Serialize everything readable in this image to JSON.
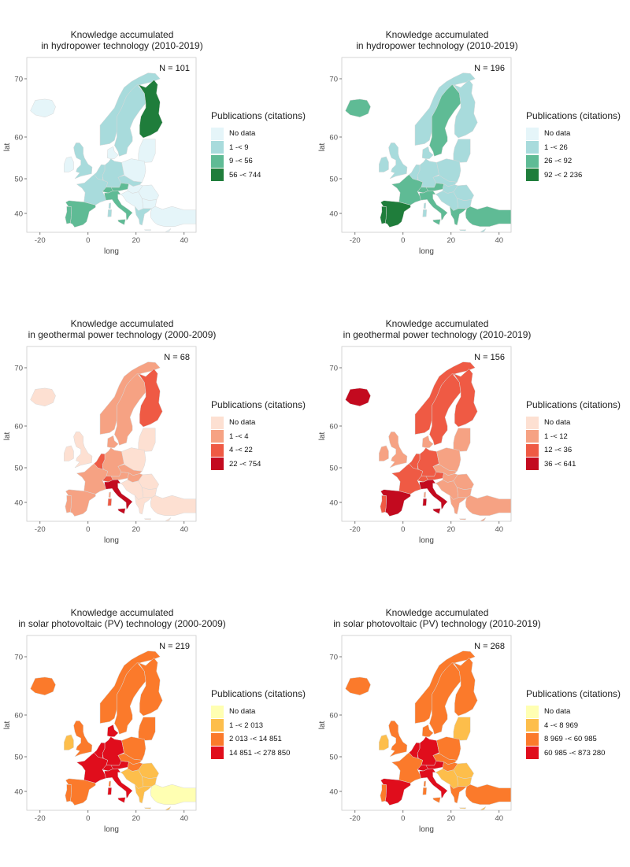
{
  "axis": {
    "xlabel": "long",
    "ylabel": "lat",
    "xticks": [
      "-20",
      "0",
      "20",
      "40"
    ],
    "yticks": [
      "40",
      "50",
      "60",
      "70"
    ]
  },
  "n_prefix": "N = ",
  "legend_title": "Publications (citations)",
  "panels": [
    {
      "title_line1": "Knowledge accumulated",
      "title_line2": "in hydropower technology (2010-2019)",
      "n": "101",
      "legend": [
        "No data",
        "1 -< 9",
        "9 -< 56",
        "56 -< 744"
      ],
      "colors": [
        "#e5f5f9",
        "#a8dbdc",
        "#5fbb95",
        "#1f7d3b"
      ]
    },
    {
      "title_line1": "Knowledge accumulated",
      "title_line2": "in hydropower technology (2010-2019)",
      "n": "196",
      "legend": [
        "No data",
        "1 -< 26",
        "26 -< 92",
        "92 -< 2 236"
      ],
      "colors": [
        "#e5f5f9",
        "#a8dbdc",
        "#5fbb95",
        "#1f7d3b"
      ]
    },
    {
      "title_line1": "Knowledge accumulated",
      "title_line2": "in geothermal power technology (2000-2009)",
      "n": "68",
      "legend": [
        "No data",
        "1 -< 4",
        "4 -< 22",
        "22 -< 754"
      ],
      "colors": [
        "#fde0d2",
        "#f6a283",
        "#ef5a44",
        "#c30a1f"
      ]
    },
    {
      "title_line1": "Knowledge accumulated",
      "title_line2": "in geothermal power technology (2010-2019)",
      "n": "156",
      "legend": [
        "No data",
        "1 -< 12",
        "12 -< 36",
        "36 -< 641"
      ],
      "colors": [
        "#fde0d2",
        "#f6a283",
        "#ef5a44",
        "#c30a1f"
      ]
    },
    {
      "title_line1": "Knowledge accumulated",
      "title_line2": "in solar photovoltaic (PV) technology (2000-2009)",
      "n": "219",
      "legend": [
        "No data",
        "1 -< 2 013",
        "2 013 -< 14 851",
        "14 851 -< 278 850"
      ],
      "colors": [
        "#ffffb2",
        "#fdbe4b",
        "#fb7a2b",
        "#e00d1c"
      ]
    },
    {
      "title_line1": "Knowledge accumulated",
      "title_line2": "in solar photovoltaic (PV) technology (2010-2019)",
      "n": "268",
      "legend": [
        "No data",
        "4 -< 8 969",
        "8 969 -< 60 985",
        "60 985 -< 873 280"
      ],
      "colors": [
        "#ffffb2",
        "#fdbe4b",
        "#fb7a2b",
        "#e00d1c"
      ]
    }
  ]
}
